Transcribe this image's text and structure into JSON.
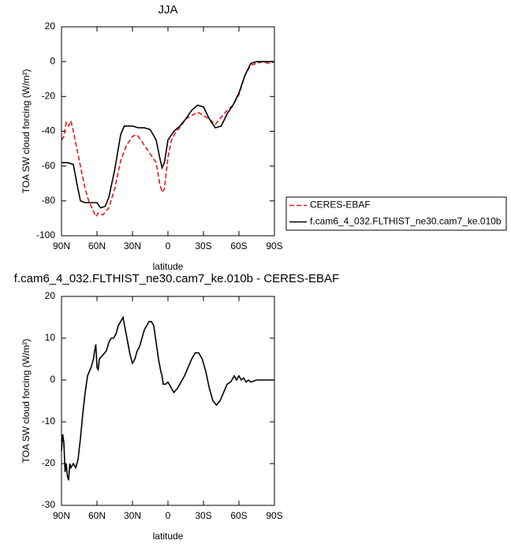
{
  "chart_data": [
    {
      "type": "line",
      "title": "JJA",
      "xlabel": "latitude",
      "ylabel": "TOA SW cloud forcing (W/m²)",
      "xlim": [
        90,
        -90
      ],
      "ylim": [
        -100,
        20
      ],
      "xticks": [
        {
          "value": 90,
          "label": "90N"
        },
        {
          "value": 60,
          "label": "60N"
        },
        {
          "value": 30,
          "label": "30N"
        },
        0,
        {
          "value": -30,
          "label": "30S"
        },
        {
          "value": -60,
          "label": "60S"
        },
        {
          "value": -90,
          "label": "90S"
        }
      ],
      "yticks": [
        -100,
        -80,
        -60,
        -40,
        -20,
        0,
        20
      ],
      "legend": "outside-right",
      "series": [
        {
          "name": "CERES-EBAF",
          "color": "#e41a1c",
          "line_style": "dashed",
          "x": [
            90,
            88,
            86,
            84,
            82,
            80,
            77,
            74,
            70,
            67,
            63,
            61,
            59,
            55,
            50,
            45,
            40,
            35,
            30,
            27,
            25,
            20,
            15,
            10,
            7,
            5,
            3,
            0,
            -3,
            -7,
            -10,
            -15,
            -20,
            -25,
            -30,
            -35,
            -40,
            -45,
            -50,
            -55,
            -60,
            -65,
            -70,
            -75,
            -80,
            -85,
            -90
          ],
          "values": [
            -45,
            -43,
            -35,
            -37,
            -34,
            -40,
            -50,
            -60,
            -73,
            -80,
            -86,
            -89,
            -87,
            -88,
            -84,
            -73,
            -57,
            -48,
            -43,
            -42,
            -43,
            -48,
            -53,
            -58,
            -70,
            -75,
            -73,
            -55,
            -45,
            -40,
            -38,
            -33,
            -31,
            -29,
            -31,
            -33,
            -36,
            -32,
            -28,
            -25,
            -19,
            -8,
            -2,
            -1,
            0,
            -1,
            0
          ]
        },
        {
          "name": "f.cam6_4_032.FLTHIST_ne30.cam7_ke.010b",
          "color": "#000000",
          "line_style": "solid",
          "x": [
            90,
            85,
            80,
            77,
            74,
            70,
            65,
            60,
            57,
            53,
            50,
            45,
            40,
            37,
            33,
            30,
            25,
            20,
            15,
            10,
            7,
            5,
            3,
            0,
            -5,
            -10,
            -15,
            -20,
            -25,
            -30,
            -35,
            -40,
            -45,
            -50,
            -55,
            -60,
            -65,
            -70,
            -75,
            -80,
            -85,
            -90
          ],
          "values": [
            -58,
            -58,
            -59,
            -70,
            -80,
            -81,
            -81,
            -81,
            -84,
            -83,
            -78,
            -62,
            -42,
            -37,
            -37,
            -37,
            -38,
            -38,
            -39,
            -45,
            -55,
            -61,
            -58,
            -45,
            -40,
            -37,
            -33,
            -28,
            -25,
            -26,
            -33,
            -38,
            -37,
            -30,
            -25,
            -18,
            -8,
            -1,
            0,
            0,
            0,
            0
          ]
        }
      ]
    },
    {
      "type": "line",
      "title": "f.cam6_4_032.FLTHIST_ne30.cam7_ke.010b - CERES-EBAF",
      "xlabel": "latitude",
      "ylabel": "TOA SW cloud forcing (W/m²)",
      "xlim": [
        90,
        -90
      ],
      "ylim": [
        -30,
        20
      ],
      "xticks": [
        {
          "value": 90,
          "label": "90N"
        },
        {
          "value": 60,
          "label": "60N"
        },
        {
          "value": 30,
          "label": "30N"
        },
        0,
        {
          "value": -30,
          "label": "30S"
        },
        {
          "value": -60,
          "label": "60S"
        },
        {
          "value": -90,
          "label": "90S"
        }
      ],
      "yticks": [
        -30,
        -20,
        -10,
        0,
        10,
        20
      ],
      "series": [
        {
          "color": "#000000",
          "line_style": "solid",
          "x": [
            90,
            89,
            88,
            87,
            86,
            85,
            84,
            83,
            82,
            80,
            78,
            76,
            74,
            72,
            70,
            68,
            65,
            63,
            62,
            61,
            60,
            59,
            58,
            55,
            52,
            50,
            48,
            46,
            44,
            42,
            40,
            38,
            36,
            34,
            32,
            30,
            28,
            26,
            24,
            22,
            20,
            18,
            16,
            14,
            12,
            10,
            8,
            6,
            5,
            4,
            2,
            0,
            -3,
            -5,
            -8,
            -10,
            -12,
            -14,
            -17,
            -20,
            -23,
            -26,
            -29,
            -32,
            -35,
            -38,
            -41,
            -44,
            -47,
            -50,
            -53,
            -56,
            -58,
            -60,
            -62,
            -64,
            -66,
            -68,
            -70,
            -75,
            -80,
            -85,
            -90
          ],
          "values": [
            -17,
            -13,
            -15,
            -22,
            -20,
            -23,
            -24,
            -20,
            -21,
            -20,
            -21,
            -19,
            -14,
            -8,
            -3,
            1,
            3,
            5,
            7,
            8.5,
            3,
            2.5,
            5,
            6,
            7,
            9,
            10,
            10,
            11,
            13,
            14,
            15,
            12,
            9,
            6,
            4,
            5,
            7,
            8,
            10,
            12,
            13,
            14,
            14,
            13,
            9,
            5,
            2,
            1,
            -1,
            -1,
            -0.5,
            -2,
            -3,
            -2,
            -1,
            0,
            1,
            3,
            5,
            6.5,
            6.5,
            5,
            2,
            -2,
            -5,
            -6,
            -5,
            -3,
            -1,
            -0.5,
            1,
            0,
            1,
            0,
            0.5,
            -0.5,
            0,
            -0.5,
            0,
            0,
            0,
            0
          ]
        }
      ]
    }
  ]
}
